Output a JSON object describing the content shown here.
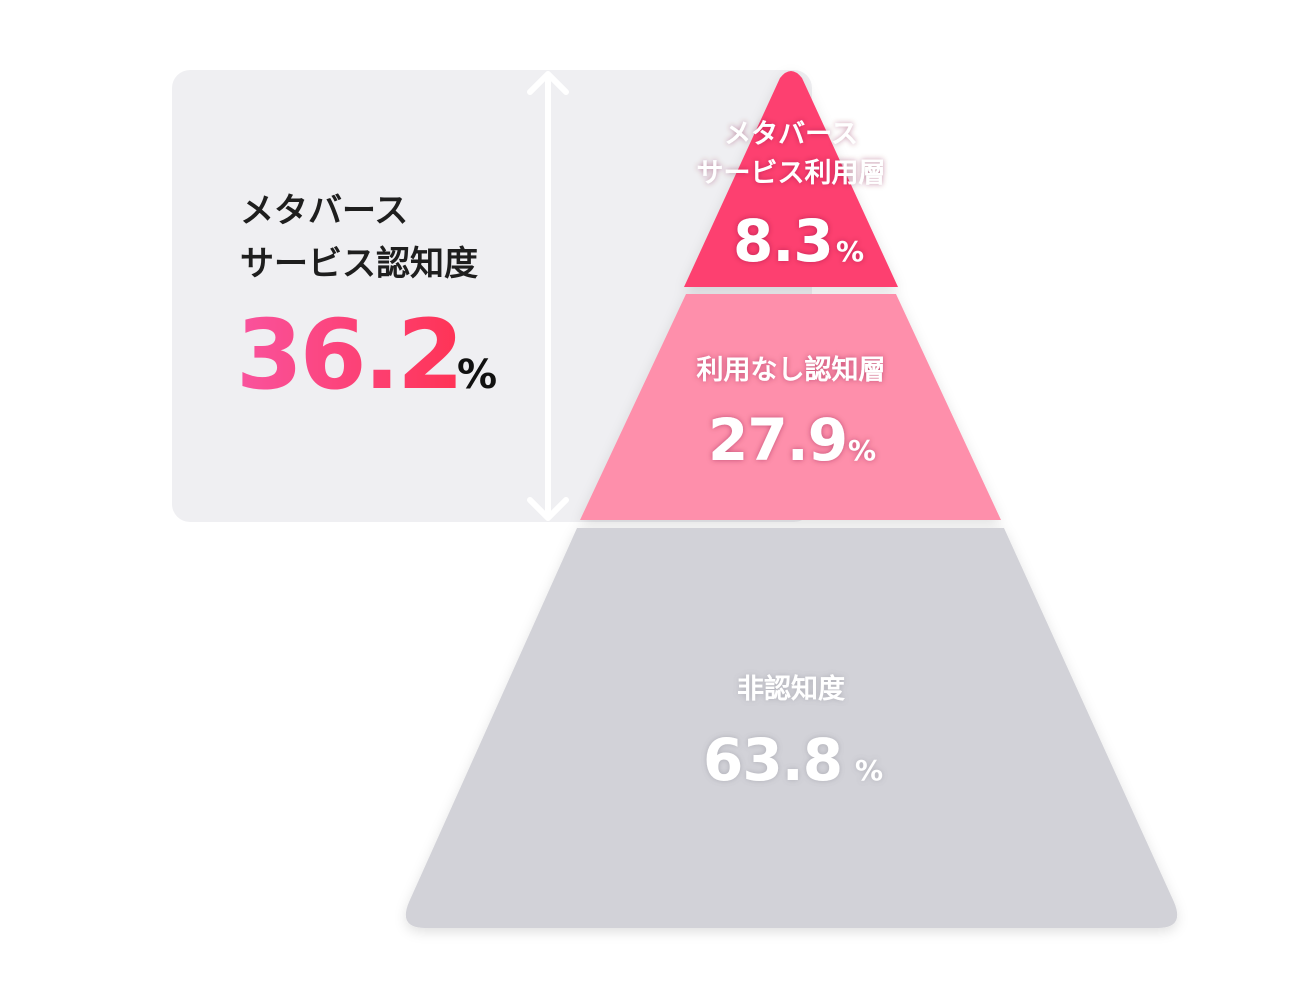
{
  "summary_box": {
    "title_line1": "メタバース",
    "title_line2": "サービス認知度",
    "value": "36.2",
    "unit": "%",
    "gradient_colors": [
      "#f9539e",
      "#ff3355"
    ]
  },
  "pyramid": {
    "levels": [
      {
        "label_lines": [
          "メタバース",
          "サービス利用層"
        ],
        "value": "8.3",
        "unit": "%",
        "color": "#fd406f"
      },
      {
        "label_lines": [
          "利用なし認知層"
        ],
        "value": "27.9",
        "unit": "%",
        "color": "#fe8fab"
      },
      {
        "label_lines": [
          "非認知度"
        ],
        "value": "63.8",
        "unit": "%",
        "color": "#d2d2d8"
      }
    ]
  },
  "colors": {
    "box_background": "#efeff2",
    "arrow": "#ffffff"
  }
}
